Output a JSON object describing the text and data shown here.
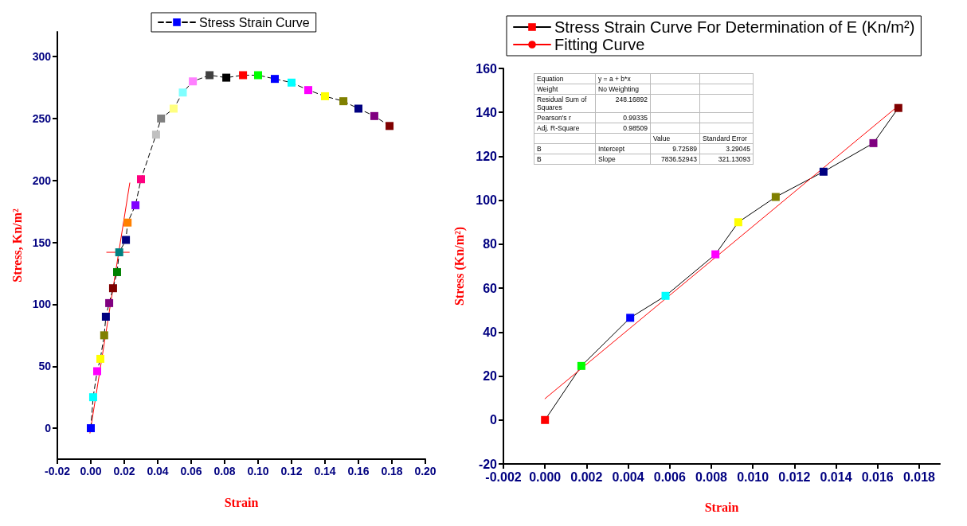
{
  "chart_data": [
    {
      "type": "line",
      "xlabel": "Strain",
      "ylabel": "Stress, Kn/m²",
      "marker": "square",
      "legend": "top",
      "xlim": [
        -0.02,
        0.2
      ],
      "ylim": [
        -25,
        320
      ],
      "xticks": [
        {
          "value": -0.02,
          "label": "-0.02"
        },
        {
          "value": 0,
          "label": "0.00"
        },
        {
          "value": 0.02,
          "label": "0.02"
        },
        {
          "value": 0.04,
          "label": "0.04"
        },
        {
          "value": 0.06,
          "label": "0.06"
        },
        {
          "value": 0.08,
          "label": "0.08"
        },
        {
          "value": 0.1,
          "label": "0.10"
        },
        {
          "value": 0.12,
          "label": "0.12"
        },
        {
          "value": 0.14,
          "label": "0.14"
        },
        {
          "value": 0.16,
          "label": "0.16"
        },
        {
          "value": 0.18,
          "label": "0.18"
        },
        {
          "value": 0.2,
          "label": "0.20"
        }
      ],
      "yticks": [
        0,
        50,
        100,
        150,
        200,
        250,
        300
      ],
      "series": [
        {
          "name": "Stress Strain Curve",
          "color": "#000000",
          "line_style": "dashed",
          "x": [
            0,
            0.0014,
            0.0038,
            0.0057,
            0.008,
            0.009,
            0.011,
            0.0133,
            0.0157,
            0.017,
            0.021,
            0.022,
            0.0267,
            0.03,
            0.039,
            0.042,
            0.0495,
            0.055,
            0.061,
            0.071,
            0.081,
            0.091,
            0.1,
            0.11,
            0.12,
            0.13,
            0.14,
            0.151,
            0.16,
            0.1695,
            0.1786
          ],
          "values": [
            0,
            25,
            46,
            56,
            75,
            90,
            101,
            113,
            126,
            142,
            152,
            166,
            180,
            201,
            237,
            250,
            258,
            271,
            280,
            285,
            283,
            285,
            285,
            282,
            279,
            273,
            268,
            264,
            258,
            252,
            244
          ],
          "colors": [
            "#0000ff",
            "#00ffff",
            "#ff00ff",
            "#ffff00",
            "#808000",
            "#000080",
            "#800080",
            "#800000",
            "#008000",
            "#008080",
            "#000080",
            "#ff8000",
            "#8000ff",
            "#ff0080",
            "#c0c0c0",
            "#808080",
            "#ffff80",
            "#80ffff",
            "#ff80ff",
            "#404040",
            "#000000",
            "#ff0000",
            "#00ff00",
            "#0000ff",
            "#00ffff",
            "#ff00ff",
            "#ffff00",
            "#808000",
            "#000080",
            "#800080",
            "#800000"
          ]
        },
        {
          "color": "#ff0000",
          "marker": "none",
          "line_style": "solid",
          "x": [
            -0.0005,
            0.0233
          ],
          "values": [
            -4,
            198
          ]
        },
        {
          "color": "#ff0000",
          "marker": "none",
          "line_style": "solid",
          "x": [
            0.0095,
            0.023
          ],
          "values": [
            142,
            142
          ]
        }
      ]
    },
    {
      "type": "line",
      "xlabel": "Strain",
      "ylabel": "Stress (Kn/m²)",
      "marker": "square",
      "legend": "top",
      "xlim": [
        -0.002,
        0.019
      ],
      "ylim": [
        -20,
        160
      ],
      "xticks": [
        {
          "value": -0.002,
          "label": "-0.002"
        },
        {
          "value": 0,
          "label": "0.000"
        },
        {
          "value": 0.002,
          "label": "0.002"
        },
        {
          "value": 0.004,
          "label": "0.004"
        },
        {
          "value": 0.006,
          "label": "0.006"
        },
        {
          "value": 0.008,
          "label": "0.008"
        },
        {
          "value": 0.01,
          "label": "0.010"
        },
        {
          "value": 0.012,
          "label": "0.012"
        },
        {
          "value": 0.014,
          "label": "0.014"
        },
        {
          "value": 0.016,
          "label": "0.016"
        },
        {
          "value": 0.018,
          "label": "0.018"
        }
      ],
      "yticks": [
        -20,
        0,
        20,
        40,
        60,
        80,
        100,
        120,
        140,
        160
      ],
      "annotations": [
        "Equation\ty = a + b*x\t\t",
        "Weight\tNo Weighting\t\t",
        "Residual Sum of Squares\t248.16892\t\t",
        "Pearson's r\t0.99335\t\t",
        "Adj. R-Square\t0.98509\t\t",
        "\t\tValue\tStandard Error",
        "B\tIntercept\t9.72589\t3.29045",
        "B\tSlope\t7836.52943\t321.13093"
      ],
      "series": [
        {
          "name": "Stress Strain Curve For Determination of E (Kn/m²)",
          "color": "#000000",
          "line_style": "solid",
          "x": [
            0,
            0.00175,
            0.0041,
            0.0058,
            0.0082,
            0.0093,
            0.0111,
            0.0134,
            0.0158,
            0.017
          ],
          "values": [
            0,
            24.6,
            46.5,
            56.5,
            75.4,
            90,
            101.5,
            113,
            126,
            142
          ],
          "colors": [
            "#ff0000",
            "#00ff00",
            "#0000ff",
            "#00ffff",
            "#ff00ff",
            "#ffff00",
            "#808000",
            "#000080",
            "#800080",
            "#800000"
          ]
        },
        {
          "name": "Fitting Curve",
          "color": "#ff0000",
          "marker": "none",
          "line_style": "solid",
          "x": [
            0,
            0.017
          ],
          "values": [
            9.7,
            143
          ]
        }
      ]
    }
  ]
}
